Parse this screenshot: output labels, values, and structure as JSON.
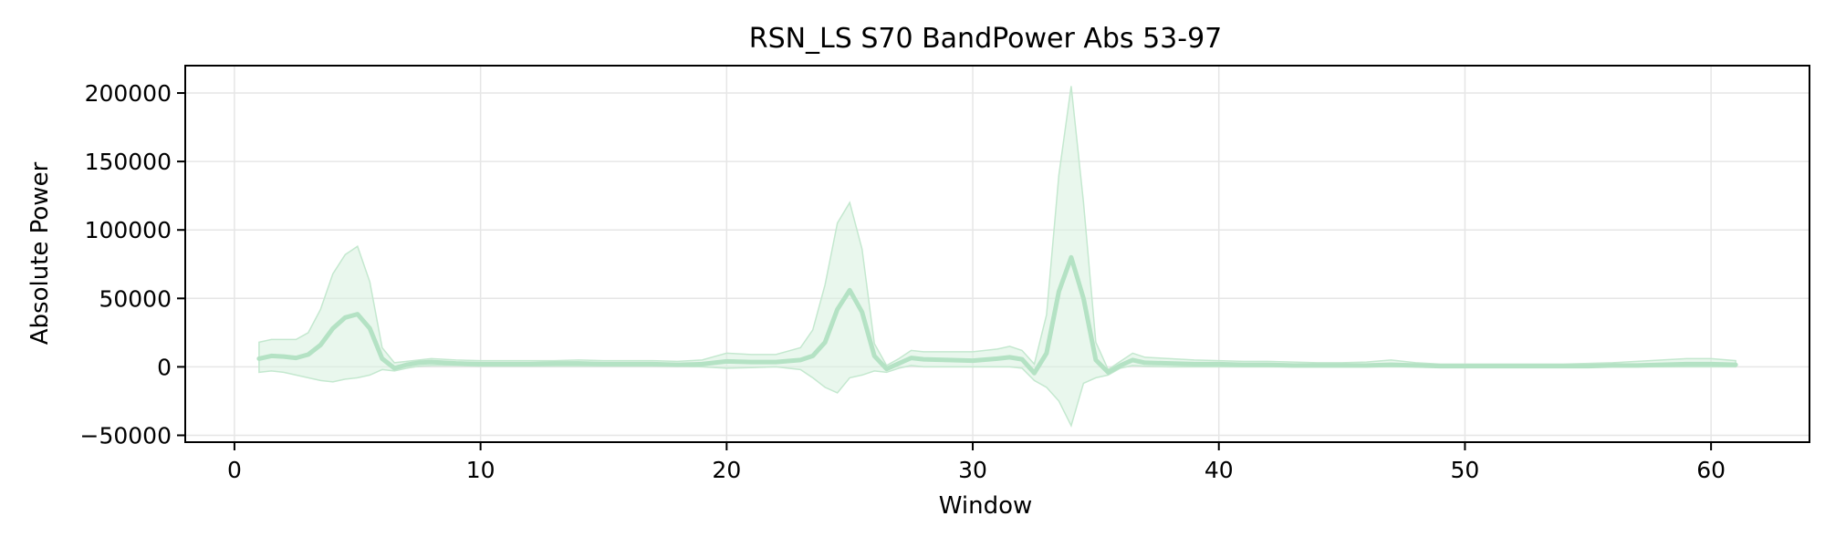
{
  "chart_data": {
    "type": "line",
    "title": "RSN_LS S70 BandPower Abs 53-97",
    "xlabel": "Window",
    "ylabel": "Absolute Power",
    "xlim": [
      -2,
      64
    ],
    "ylim": [
      -55000,
      220000
    ],
    "x_ticks": [
      0,
      10,
      20,
      30,
      40,
      50,
      60
    ],
    "x_tick_labels": [
      "0",
      "10",
      "20",
      "30",
      "40",
      "50",
      "60"
    ],
    "y_ticks": [
      -50000,
      0,
      50000,
      100000,
      150000,
      200000
    ],
    "y_tick_labels": [
      "−50000",
      "0",
      "50000",
      "100000",
      "150000",
      "200000"
    ],
    "grid": true,
    "legend": "none",
    "colors": {
      "line": "#b4e2c4",
      "band": "#d7f0df",
      "band_edge": "#c4e8cf"
    },
    "series": [
      {
        "x": [
          1,
          1.5,
          2,
          2.5,
          3,
          3.5,
          4,
          4.5,
          5,
          5.5,
          6,
          6.5,
          7,
          7.5,
          8,
          9,
          10,
          11,
          12,
          13,
          14,
          15,
          16,
          17,
          18,
          19,
          20,
          21,
          22,
          23,
          23.5,
          24,
          24.5,
          25,
          25.5,
          26,
          26.5,
          27,
          27.5,
          28,
          29,
          30,
          31,
          31.5,
          32,
          32.5,
          33,
          33.5,
          34,
          34.5,
          35,
          35.5,
          36,
          36.5,
          37,
          38,
          39,
          40,
          41,
          42,
          43,
          44,
          45,
          46,
          47,
          48,
          49,
          50,
          51,
          52,
          53,
          54,
          55,
          56,
          57,
          58,
          59,
          60,
          61
        ],
        "mean": [
          6000,
          8000,
          7500,
          6500,
          9000,
          16000,
          28000,
          36000,
          38500,
          28000,
          6000,
          -1000,
          1500,
          3000,
          3500,
          2500,
          2000,
          2000,
          2000,
          2500,
          2500,
          2000,
          2000,
          2000,
          1500,
          2000,
          4000,
          3500,
          3500,
          5000,
          8000,
          18000,
          42000,
          56000,
          40000,
          8000,
          -1500,
          2500,
          6500,
          5500,
          5000,
          4500,
          6000,
          7000,
          5500,
          -4500,
          10000,
          55000,
          80000,
          50000,
          5000,
          -4000,
          1000,
          5000,
          3000,
          2500,
          2000,
          2000,
          1500,
          1500,
          1000,
          1000,
          1000,
          1000,
          1500,
          1000,
          500,
          500,
          500,
          500,
          500,
          500,
          500,
          1000,
          1000,
          1500,
          2000,
          2000,
          1500
        ],
        "lower": [
          -4000,
          -3000,
          -4000,
          -6000,
          -8000,
          -10000,
          -11000,
          -9000,
          -8000,
          -6000,
          -2000,
          -3000,
          -1000,
          500,
          1000,
          1000,
          500,
          500,
          500,
          500,
          500,
          500,
          500,
          500,
          500,
          0,
          -1000,
          -500,
          0,
          -2000,
          -8000,
          -15000,
          -19000,
          -8000,
          -6000,
          -3000,
          -4000,
          -1000,
          1000,
          0,
          0,
          0,
          0,
          0,
          -1000,
          -10000,
          -15000,
          -25000,
          -43000,
          -12000,
          -8000,
          -6000,
          -1000,
          1000,
          500,
          0,
          0,
          0,
          0,
          0,
          0,
          0,
          0,
          0,
          0,
          0,
          0,
          0,
          0,
          0,
          0,
          0,
          0,
          0,
          0,
          0,
          0,
          0,
          0
        ],
        "upper": [
          18000,
          20000,
          20000,
          20000,
          25000,
          42000,
          68000,
          82000,
          88000,
          62000,
          14000,
          3000,
          4000,
          5000,
          6000,
          5000,
          4500,
          4500,
          4500,
          4500,
          5000,
          4500,
          4500,
          4500,
          4000,
          5000,
          10000,
          9000,
          9000,
          14000,
          27000,
          60000,
          105000,
          120000,
          86000,
          17000,
          1000,
          6000,
          12000,
          11000,
          11000,
          11000,
          13000,
          15000,
          12000,
          2000,
          38000,
          140000,
          205000,
          120000,
          18000,
          -2000,
          4000,
          10000,
          7000,
          6000,
          5000,
          4500,
          4000,
          4000,
          3500,
          3000,
          3000,
          3500,
          5000,
          3000,
          2000,
          2000,
          2000,
          2000,
          2000,
          2000,
          2500,
          3000,
          4000,
          5000,
          6000,
          6000,
          4500
        ]
      }
    ]
  }
}
